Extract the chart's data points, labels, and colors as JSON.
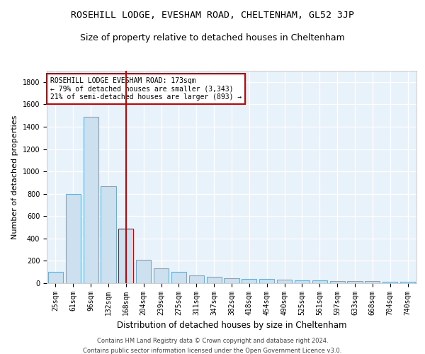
{
  "title1": "ROSEHILL LODGE, EVESHAM ROAD, CHELTENHAM, GL52 3JP",
  "title2": "Size of property relative to detached houses in Cheltenham",
  "xlabel": "Distribution of detached houses by size in Cheltenham",
  "ylabel": "Number of detached properties",
  "categories": [
    "25sqm",
    "61sqm",
    "96sqm",
    "132sqm",
    "168sqm",
    "204sqm",
    "239sqm",
    "275sqm",
    "311sqm",
    "347sqm",
    "382sqm",
    "418sqm",
    "454sqm",
    "490sqm",
    "525sqm",
    "561sqm",
    "597sqm",
    "633sqm",
    "668sqm",
    "704sqm",
    "740sqm"
  ],
  "values": [
    100,
    800,
    1490,
    870,
    490,
    210,
    130,
    100,
    70,
    55,
    45,
    40,
    35,
    30,
    28,
    25,
    22,
    20,
    18,
    15,
    12
  ],
  "bar_color": "#cce0f0",
  "bar_edge_color": "#6aaed6",
  "highlight_index": 4,
  "highlight_edge_color": "#cc0000",
  "vline_color": "#cc0000",
  "annotation_text": "ROSEHILL LODGE EVESHAM ROAD: 173sqm\n← 79% of detached houses are smaller (3,343)\n21% of semi-detached houses are larger (893) →",
  "annotation_box_color": "white",
  "annotation_box_edge": "#cc0000",
  "ylim": [
    0,
    1900
  ],
  "yticks": [
    0,
    200,
    400,
    600,
    800,
    1000,
    1200,
    1400,
    1600,
    1800
  ],
  "footer1": "Contains HM Land Registry data © Crown copyright and database right 2024.",
  "footer2": "Contains public sector information licensed under the Open Government Licence v3.0.",
  "plot_bg": "#e8f2fa",
  "grid_color": "white",
  "title1_fontsize": 9.5,
  "title2_fontsize": 9,
  "tick_fontsize": 7,
  "ylabel_fontsize": 8,
  "xlabel_fontsize": 8.5,
  "footer_fontsize": 6
}
